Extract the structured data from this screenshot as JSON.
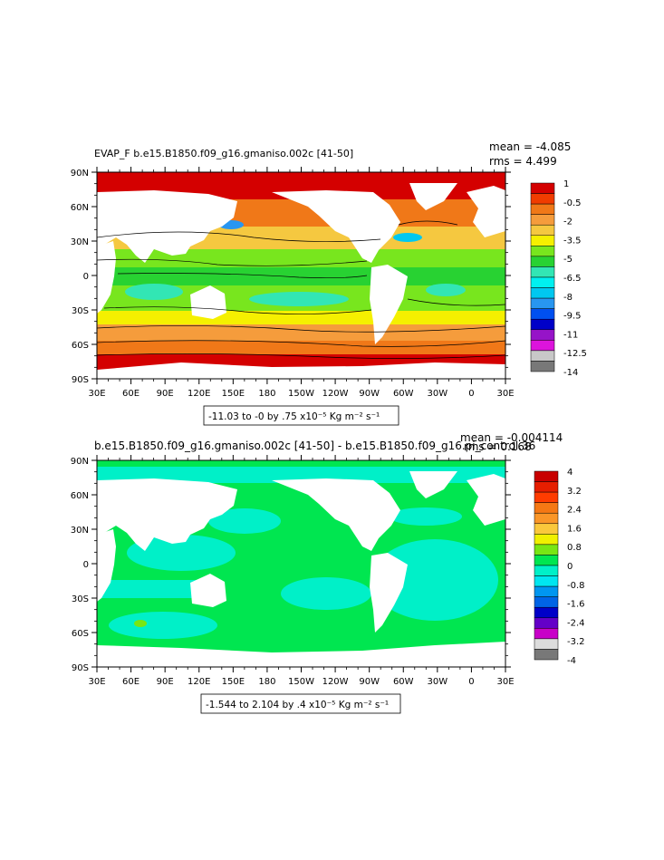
{
  "panels": [
    {
      "title": "EVAP_F b.e15.B1850.f09_g16.gmaniso.002c [41-50]",
      "stats": {
        "mean_label": "mean = -4.085",
        "rms_label": "rms = 4.499"
      },
      "lat_labels": [
        "90N",
        "60N",
        "30N",
        "0",
        "30S",
        "60S",
        "90S"
      ],
      "lon_labels": [
        "30E",
        "60E",
        "90E",
        "120E",
        "150E",
        "180",
        "150W",
        "120W",
        "90W",
        "60W",
        "30W",
        "0",
        "30E"
      ],
      "colorbar": {
        "labels": [
          "1",
          "-0.5",
          "-2",
          "-3.5",
          "-5",
          "-6.5",
          "-8",
          "-9.5",
          "-11",
          "-12.5",
          "-14"
        ],
        "colors": [
          "#d40000",
          "#f03c00",
          "#f07818",
          "#f59c3c",
          "#f5c840",
          "#f5f000",
          "#78e61e",
          "#28d232",
          "#32e6b4",
          "#00f0f0",
          "#00c8f0",
          "#2896f0",
          "#0050f0",
          "#0000c8",
          "#9614c8",
          "#dc14dc",
          "#c8c8c8",
          "#787878"
        ]
      },
      "range_label": "-11.03 to -0 by .75 x10⁻⁵ Kg m⁻² s⁻¹",
      "ocean_fill": "#28d232"
    },
    {
      "title": "b.e15.B1850.f09_g16.gmaniso.002c [41-50] - b.e15.B1850.f09_g16.pi_control.36",
      "stats": {
        "mean_label": "mean = -0.004114",
        "rms_label": "rms = 0.168"
      },
      "lat_labels": [
        "90N",
        "60N",
        "30N",
        "0",
        "30S",
        "60S",
        "90S"
      ],
      "lon_labels": [
        "30E",
        "60E",
        "90E",
        "120E",
        "150E",
        "180",
        "150W",
        "120W",
        "90W",
        "60W",
        "30W",
        "0",
        "30E"
      ],
      "colorbar": {
        "labels": [
          "4",
          "3.2",
          "2.4",
          "1.6",
          "0.8",
          "0",
          "-0.8",
          "-1.6",
          "-2.4",
          "-3.2",
          "-4"
        ],
        "colors": [
          "#c80000",
          "#e61e00",
          "#ff3c00",
          "#f57814",
          "#fa9628",
          "#fac83c",
          "#f0f000",
          "#78e614",
          "#00e650",
          "#00f0c8",
          "#00e6f0",
          "#0096f0",
          "#0064e6",
          "#0000c8",
          "#6400c8",
          "#c800c8",
          "#dcdcdc",
          "#787878"
        ]
      },
      "range_label": "-1.544 to 2.104 by .4 x10⁻⁵ Kg m⁻² s⁻¹",
      "ocean_fill": "#00e650"
    }
  ]
}
